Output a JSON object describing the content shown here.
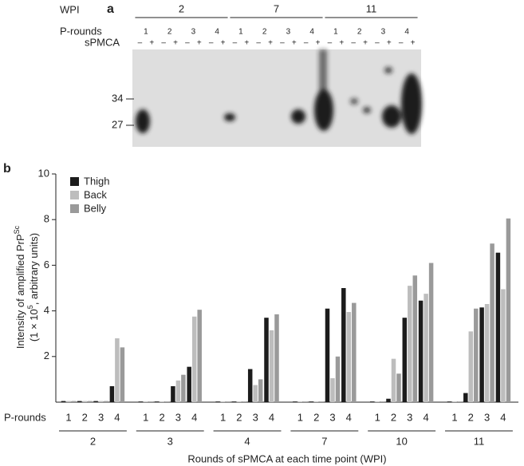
{
  "panel_a": {
    "label": "a",
    "wpi_label": "WPI",
    "groups": [
      "2",
      "7",
      "11"
    ],
    "prounds_label": "P-rounds",
    "prounds": [
      "1",
      "2",
      "3",
      "4",
      "1",
      "2",
      "3",
      "4",
      "1",
      "2",
      "3",
      "4"
    ],
    "spmca_label": "sPMCA",
    "spmca": [
      "–",
      "+",
      "–",
      "+",
      "–",
      "+",
      "–",
      "+",
      "–",
      "+",
      "–",
      "+",
      "–",
      "+",
      "–",
      "+",
      "–",
      "+",
      "–",
      "+",
      "–",
      "+",
      "–",
      "+"
    ],
    "markers": [
      "34",
      "27"
    ]
  },
  "chart_data": {
    "type": "bar",
    "label": "b",
    "ylabel": [
      [
        "Intensity of amplified PrP",
        "Sc"
      ],
      [
        "(1 × 10",
        "5",
        ", arbitrary units)"
      ]
    ],
    "xlabel": "Rounds of sPMCA at each time point (WPI)",
    "categories_label": "P-rounds",
    "categories": [
      "1",
      "2",
      "3",
      "4",
      "1",
      "2",
      "3",
      "4",
      "1",
      "2",
      "3",
      "4",
      "1",
      "2",
      "3",
      "4",
      "1",
      "2",
      "3",
      "4",
      "1",
      "2",
      "3",
      "4"
    ],
    "groups": [
      "2",
      "3",
      "4",
      "7",
      "10",
      "11"
    ],
    "ylim": [
      0,
      10
    ],
    "yticks": [
      2,
      4,
      6,
      8,
      10
    ],
    "series": [
      {
        "name": "Thigh",
        "color": "#1c1c1c",
        "values": [
          0.05,
          0.05,
          0.05,
          0.7,
          0.03,
          0.03,
          0.7,
          1.55,
          0.03,
          0.03,
          1.45,
          3.7,
          0.03,
          0.03,
          4.1,
          5.0,
          0.03,
          0.15,
          3.7,
          4.45,
          0.03,
          0.4,
          4.15,
          6.55
        ]
      },
      {
        "name": "Back",
        "color": "#bdbdbd",
        "values": [
          0.05,
          0.05,
          0.05,
          2.8,
          0.03,
          0.03,
          0.95,
          3.75,
          0.03,
          0.03,
          0.75,
          3.15,
          0.03,
          0.03,
          1.05,
          3.95,
          0.03,
          1.9,
          5.1,
          4.75,
          0.03,
          3.1,
          4.3,
          4.95
        ]
      },
      {
        "name": "Belly",
        "color": "#9a9a9a",
        "values": [
          0.05,
          0.05,
          0.05,
          2.4,
          0.03,
          0.03,
          1.2,
          4.05,
          0.03,
          0.03,
          1.0,
          3.85,
          0.03,
          0.03,
          2.0,
          4.35,
          0.03,
          1.25,
          5.55,
          6.1,
          0.03,
          4.1,
          6.95,
          8.05
        ]
      }
    ]
  }
}
